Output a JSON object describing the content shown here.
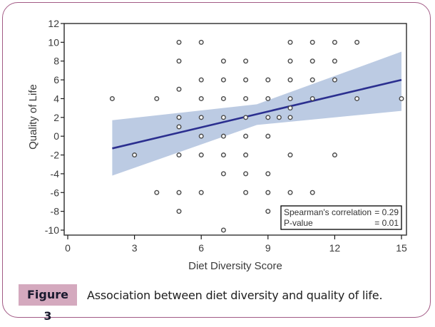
{
  "figure": {
    "label": "Figure 3",
    "caption": "Association between diet diversity and quality of life.",
    "border_color": "#a25a85",
    "label_bg_color": "#d4a9be"
  },
  "chart_data": {
    "type": "scatter",
    "title": "",
    "xlabel": "Diet Diversity Score",
    "ylabel": "Quality of Life",
    "xlim": [
      0,
      15
    ],
    "ylim": [
      -10,
      12
    ],
    "xticks": [
      0,
      3,
      6,
      9,
      12,
      15
    ],
    "yticks": [
      12,
      10,
      8,
      6,
      4,
      2,
      0,
      -2,
      -4,
      -6,
      -8,
      -10
    ],
    "grid": false,
    "points": [
      [
        2,
        4
      ],
      [
        3,
        -2
      ],
      [
        4,
        4
      ],
      [
        4,
        -6
      ],
      [
        5,
        10
      ],
      [
        5,
        8
      ],
      [
        5,
        5
      ],
      [
        5,
        2
      ],
      [
        5,
        1
      ],
      [
        5,
        -2
      ],
      [
        5,
        -6
      ],
      [
        5,
        -8
      ],
      [
        6,
        10
      ],
      [
        6,
        6
      ],
      [
        6,
        4
      ],
      [
        6,
        2
      ],
      [
        6,
        0
      ],
      [
        6,
        -2
      ],
      [
        6,
        -6
      ],
      [
        7,
        8
      ],
      [
        7,
        6
      ],
      [
        7,
        4
      ],
      [
        7,
        2
      ],
      [
        7,
        0
      ],
      [
        7,
        -2
      ],
      [
        7,
        -4
      ],
      [
        7,
        -10
      ],
      [
        8,
        8
      ],
      [
        8,
        6
      ],
      [
        8,
        4
      ],
      [
        8,
        2
      ],
      [
        8,
        0
      ],
      [
        8,
        -2
      ],
      [
        8,
        -4
      ],
      [
        8,
        -6
      ],
      [
        9,
        6
      ],
      [
        9,
        4
      ],
      [
        9,
        2
      ],
      [
        9,
        0
      ],
      [
        9,
        -4
      ],
      [
        9,
        -6
      ],
      [
        9,
        -8
      ],
      [
        9.5,
        2
      ],
      [
        10,
        10
      ],
      [
        10,
        8
      ],
      [
        10,
        6
      ],
      [
        10,
        4
      ],
      [
        10,
        3
      ],
      [
        10,
        2
      ],
      [
        10,
        -2
      ],
      [
        10,
        -6
      ],
      [
        11,
        10
      ],
      [
        11,
        8
      ],
      [
        11,
        6
      ],
      [
        11,
        4
      ],
      [
        11,
        -6
      ],
      [
        12,
        10
      ],
      [
        12,
        8
      ],
      [
        12,
        6
      ],
      [
        12,
        -2
      ],
      [
        13,
        10
      ],
      [
        13,
        4
      ],
      [
        15,
        4
      ]
    ],
    "fit_line": {
      "name": "Linear fit",
      "x": [
        2,
        15
      ],
      "y": [
        -1.3,
        6.0
      ],
      "color": "#2b2f8f"
    },
    "confidence_band": {
      "name": "95% CI",
      "x": [
        2,
        8.5,
        15
      ],
      "upper": [
        1.7,
        3.4,
        9.0
      ],
      "lower": [
        -4.2,
        1.2,
        2.7
      ],
      "color": "#bccbe3"
    },
    "annotation": {
      "position": "bottom-right",
      "lines": [
        {
          "label": "Spearman's correlation",
          "value": "= 0.29"
        },
        {
          "label": "P-value",
          "value": "= 0.01"
        }
      ]
    }
  }
}
